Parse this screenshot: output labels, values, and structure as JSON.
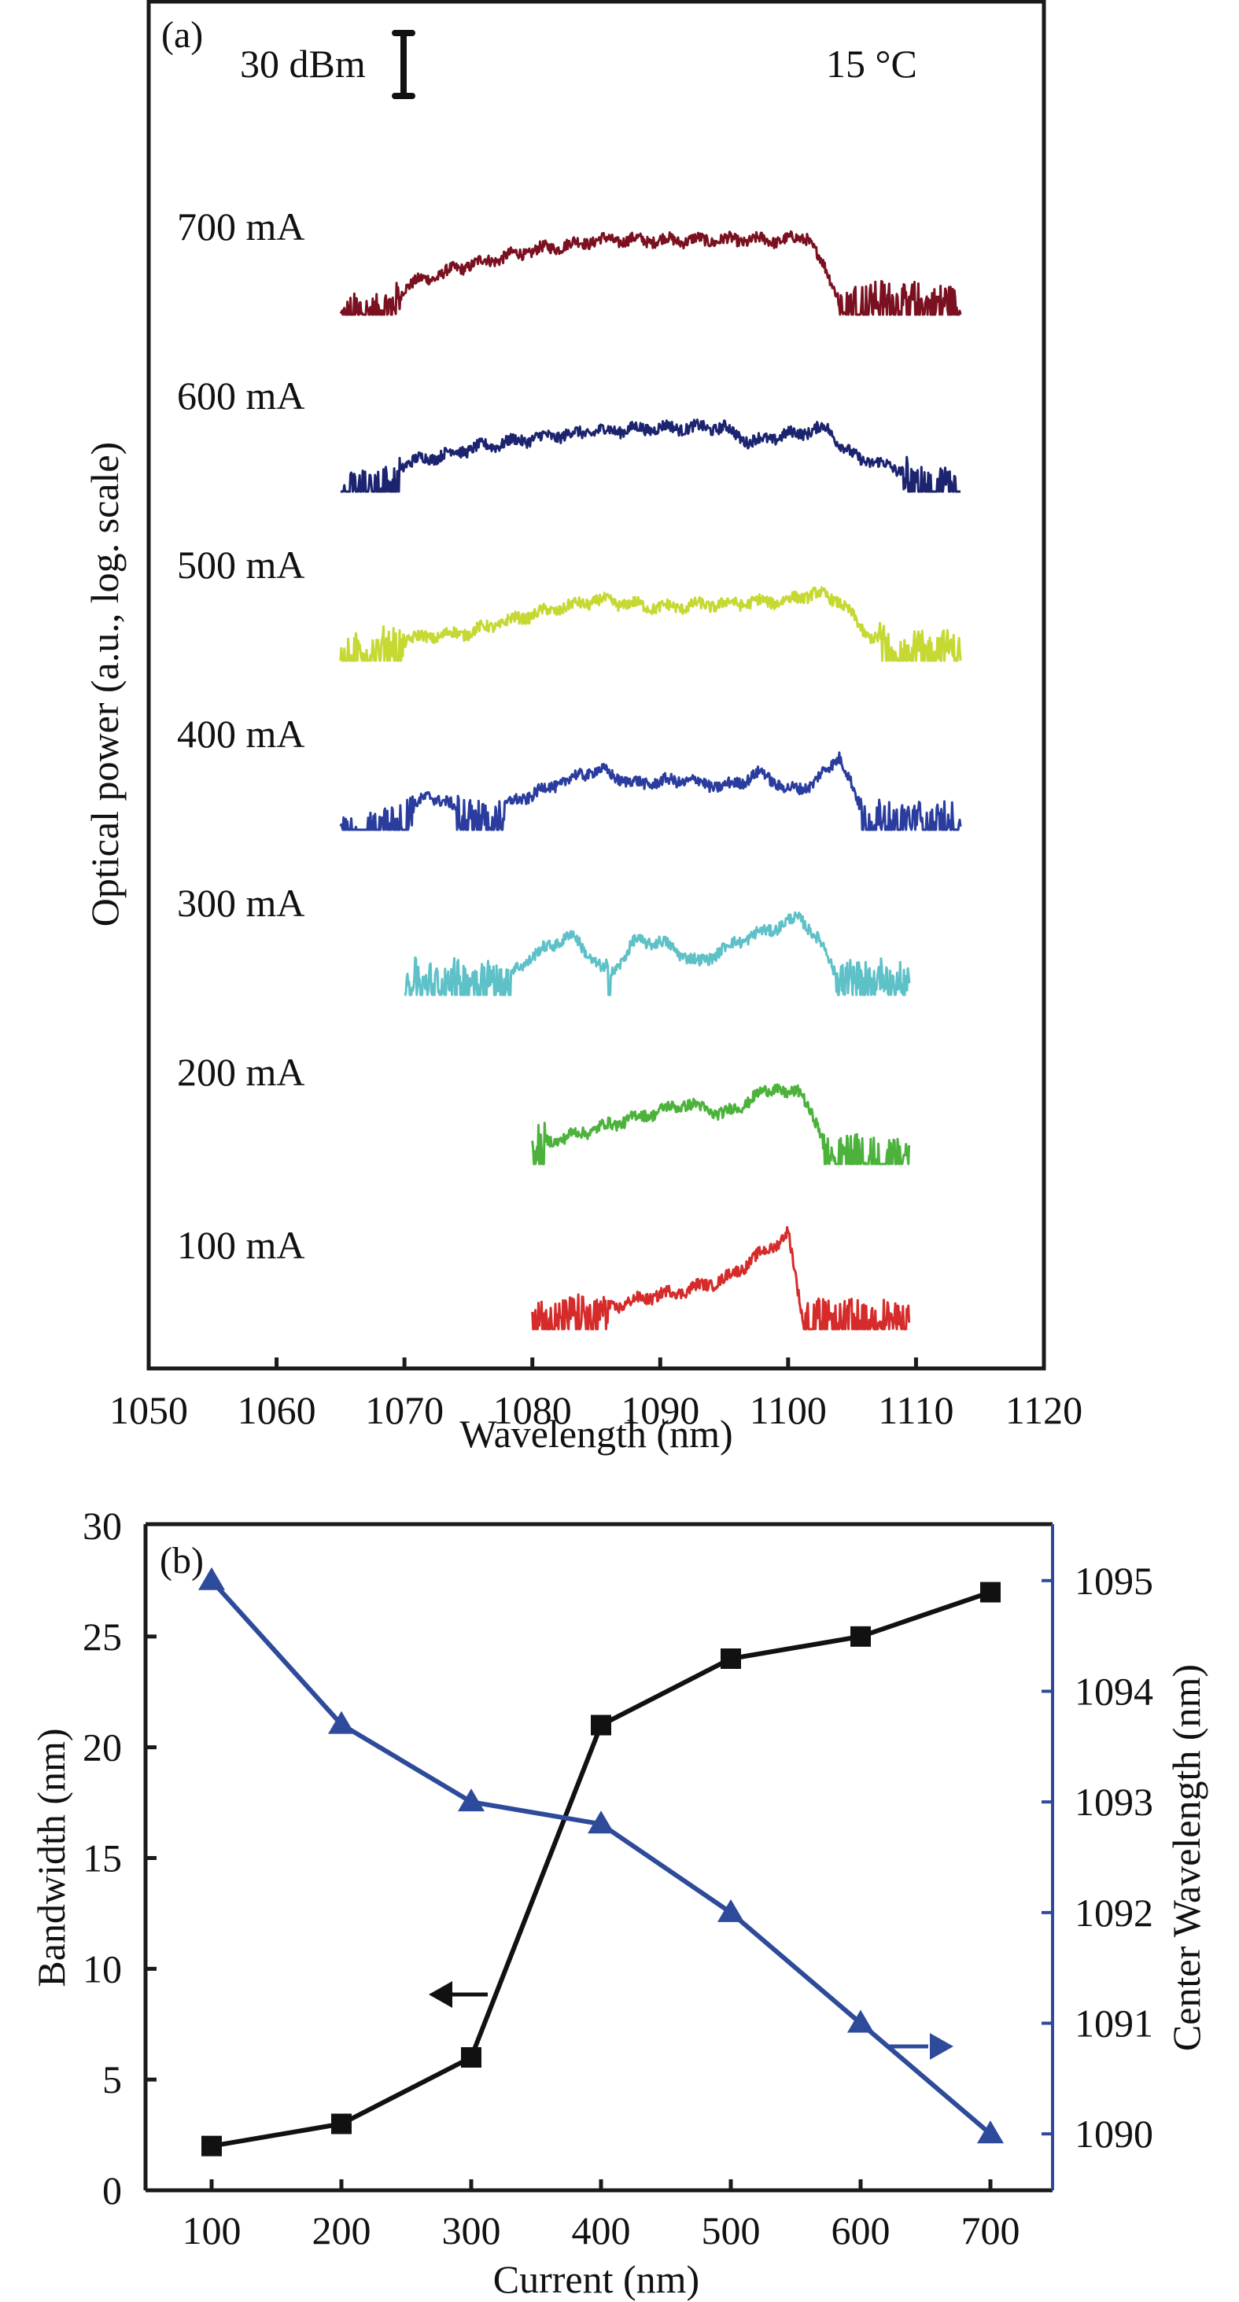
{
  "chart_data": [
    {
      "panel": "(a)",
      "type": "line",
      "title": "",
      "xlabel": "Wavelength (nm)",
      "ylabel": "Optical power (a.u., log. scale)",
      "xlim": [
        1050,
        1120
      ],
      "xticks": [
        1050,
        1060,
        1070,
        1080,
        1090,
        1100,
        1110,
        1120
      ],
      "yscale": "log (arbitrary units, traces vertically offset)",
      "annotations": {
        "scale_bar": "30 dBm",
        "temperature": "15 °C"
      },
      "grid": false,
      "series": [
        {
          "name": "700 mA",
          "color": "#7a1020",
          "x_range": [
            1065,
            1113.5
          ],
          "envelope_db": [
            [
              1065,
              0
            ],
            [
              1069,
              2
            ],
            [
              1070,
              8
            ],
            [
              1075,
              14
            ],
            [
              1080,
              18
            ],
            [
              1085,
              21
            ],
            [
              1090,
              21
            ],
            [
              1095,
              21
            ],
            [
              1100,
              21
            ],
            [
              1101.5,
              22
            ],
            [
              1103,
              12
            ],
            [
              1104,
              5
            ],
            [
              1113.5,
              3
            ]
          ]
        },
        {
          "name": "600 mA",
          "color": "#1c2470",
          "x_range": [
            1065,
            1113.5
          ],
          "envelope_db": [
            [
              1065,
              0
            ],
            [
              1069,
              2
            ],
            [
              1070,
              8
            ],
            [
              1075,
              12
            ],
            [
              1080,
              15
            ],
            [
              1085,
              17
            ],
            [
              1090,
              18
            ],
            [
              1095,
              18
            ],
            [
              1097,
              14
            ],
            [
              1100,
              16
            ],
            [
              1103,
              18
            ],
            [
              1105,
              10
            ],
            [
              1109,
              6
            ],
            [
              1110,
              2
            ],
            [
              1113.5,
              2
            ]
          ]
        },
        {
          "name": "500 mA",
          "color": "#c6d832",
          "x_range": [
            1065,
            1113.5
          ],
          "envelope_db": [
            [
              1065,
              1
            ],
            [
              1070,
              6
            ],
            [
              1075,
              8
            ],
            [
              1080,
              13
            ],
            [
              1085,
              17
            ],
            [
              1090,
              15
            ],
            [
              1095,
              16
            ],
            [
              1100,
              17
            ],
            [
              1102,
              19
            ],
            [
              1104,
              17
            ],
            [
              1106,
              8
            ],
            [
              1108,
              4
            ],
            [
              1113.5,
              3
            ]
          ]
        },
        {
          "name": "400 mA",
          "color": "#2a3d9e",
          "x_range": [
            1065,
            1113.5
          ],
          "envelope_db": [
            [
              1065,
              0
            ],
            [
              1069,
              1
            ],
            [
              1072,
              10
            ],
            [
              1075,
              4
            ],
            [
              1077,
              2
            ],
            [
              1078,
              7
            ],
            [
              1082,
              13
            ],
            [
              1085,
              17
            ],
            [
              1088,
              13
            ],
            [
              1092,
              14
            ],
            [
              1095,
              12
            ],
            [
              1098,
              16
            ],
            [
              1100,
              11
            ],
            [
              1102,
              13
            ],
            [
              1104,
              21
            ],
            [
              1106,
              3
            ],
            [
              1113.5,
              3
            ]
          ]
        },
        {
          "name": "300 mA",
          "color": "#5ec1c8",
          "x_range": [
            1070,
            1109.5
          ],
          "envelope_db": [
            [
              1070,
              5
            ],
            [
              1078,
              5
            ],
            [
              1080,
              11
            ],
            [
              1083,
              17
            ],
            [
              1085,
              9
            ],
            [
              1086,
              5
            ],
            [
              1088,
              15
            ],
            [
              1090,
              15
            ],
            [
              1093,
              9
            ],
            [
              1096,
              15
            ],
            [
              1099,
              19
            ],
            [
              1101,
              22
            ],
            [
              1103,
              12
            ],
            [
              1104,
              4
            ],
            [
              1106,
              5
            ],
            [
              1109.5,
              5
            ]
          ]
        },
        {
          "name": "200 mA",
          "color": "#4cb23c",
          "x_range": [
            1080,
            1109.5
          ],
          "envelope_db": [
            [
              1080,
              5
            ],
            [
              1082,
              7
            ],
            [
              1084,
              9
            ],
            [
              1086,
              11
            ],
            [
              1088,
              13
            ],
            [
              1090,
              15
            ],
            [
              1092,
              17
            ],
            [
              1095,
              14
            ],
            [
              1097,
              18
            ],
            [
              1099,
              22
            ],
            [
              1100,
              19
            ],
            [
              1101,
              21
            ],
            [
              1102,
              13
            ],
            [
              1103,
              3
            ],
            [
              1109.5,
              3
            ]
          ]
        },
        {
          "name": "100 mA",
          "color": "#d62b2b",
          "x_range": [
            1080,
            1109.5
          ],
          "envelope_db": [
            [
              1080,
              3
            ],
            [
              1083,
              4
            ],
            [
              1086,
              6
            ],
            [
              1089,
              9
            ],
            [
              1092,
              11
            ],
            [
              1095,
              14
            ],
            [
              1097,
              19
            ],
            [
              1099,
              24
            ],
            [
              1100,
              27
            ],
            [
              1101,
              6
            ],
            [
              1102,
              3
            ],
            [
              1109.5,
              3
            ]
          ]
        }
      ]
    },
    {
      "panel": "(b)",
      "type": "line",
      "title": "",
      "xlabel": "Current (nm)",
      "ylabel": "Bandwidth (nm)",
      "y2label": "Center Wavelength (nm)",
      "categories": [
        100,
        200,
        300,
        400,
        500,
        600,
        700
      ],
      "xlim": [
        0,
        790
      ],
      "xticks": [
        100,
        200,
        300,
        400,
        500,
        600,
        700
      ],
      "ylim": [
        0,
        30
      ],
      "yticks": [
        0,
        5,
        10,
        15,
        20,
        25,
        30
      ],
      "y2lim": [
        1089.49,
        1095.51
      ],
      "y2ticks": [
        1090,
        1091,
        1092,
        1093,
        1094,
        1095
      ],
      "grid": false,
      "series": [
        {
          "name": "Bandwidth",
          "axis": "left",
          "marker": "square",
          "color": "#111111",
          "values": [
            2,
            3,
            6,
            21,
            24,
            25,
            27
          ],
          "arrow": "left"
        },
        {
          "name": "Center Wavelength",
          "axis": "right",
          "marker": "triangle",
          "color": "#2e4a9a",
          "values": [
            1095.0,
            1093.7,
            1093.0,
            1092.8,
            1092.0,
            1091.0,
            1090.0
          ],
          "arrow": "right"
        }
      ]
    }
  ]
}
